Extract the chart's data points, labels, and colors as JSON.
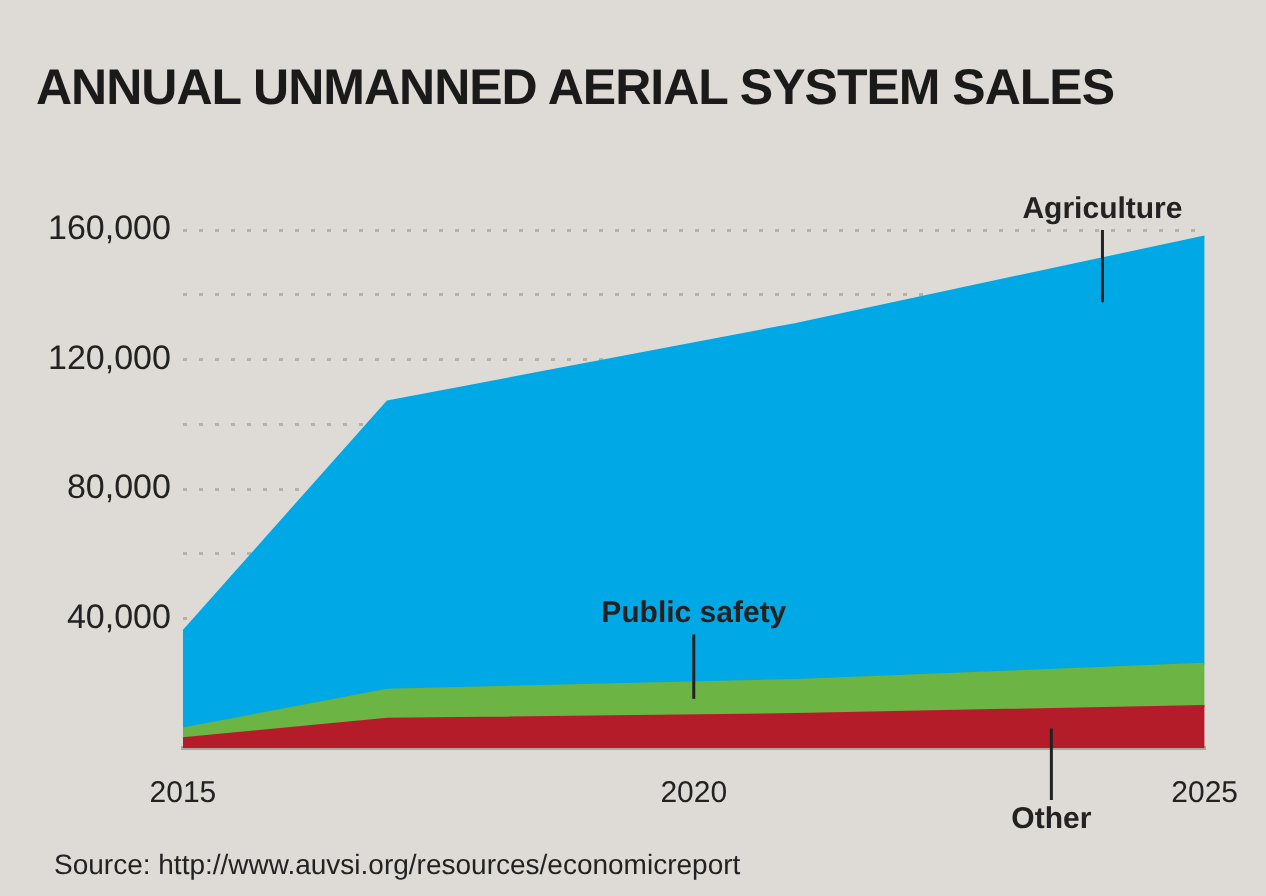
{
  "chart_data": {
    "type": "area",
    "title": "ANNUAL UNMANNED AERIAL SYSTEM SALES",
    "stacked": true,
    "x": [
      2015,
      2017,
      2021,
      2025
    ],
    "series": [
      {
        "name": "Other",
        "color": "#b51c2a",
        "values": [
          3000,
          9000,
          10500,
          13000
        ]
      },
      {
        "name": "Public safety",
        "color": "#6cb544",
        "values": [
          3000,
          9000,
          10500,
          13000
        ]
      },
      {
        "name": "Agriculture",
        "color": "#00a8e6",
        "values": [
          30000,
          89000,
          110000,
          132000
        ]
      }
    ],
    "xlim": [
      2015,
      2025
    ],
    "xticks": [
      2015,
      2020,
      2025
    ],
    "ylim": [
      0,
      160000
    ],
    "yticks": [
      {
        "value": 40000,
        "label": "40,000"
      },
      {
        "value": 60000,
        "label": null
      },
      {
        "value": 80000,
        "label": "80,000"
      },
      {
        "value": 100000,
        "label": null
      },
      {
        "value": 120000,
        "label": "120,000"
      },
      {
        "value": 140000,
        "label": null
      },
      {
        "value": 160000,
        "label": "160,000"
      }
    ],
    "grid": "y",
    "legend": false,
    "annotations": [
      "Source: http://www.auvsi.org/resources/economicreport"
    ]
  }
}
